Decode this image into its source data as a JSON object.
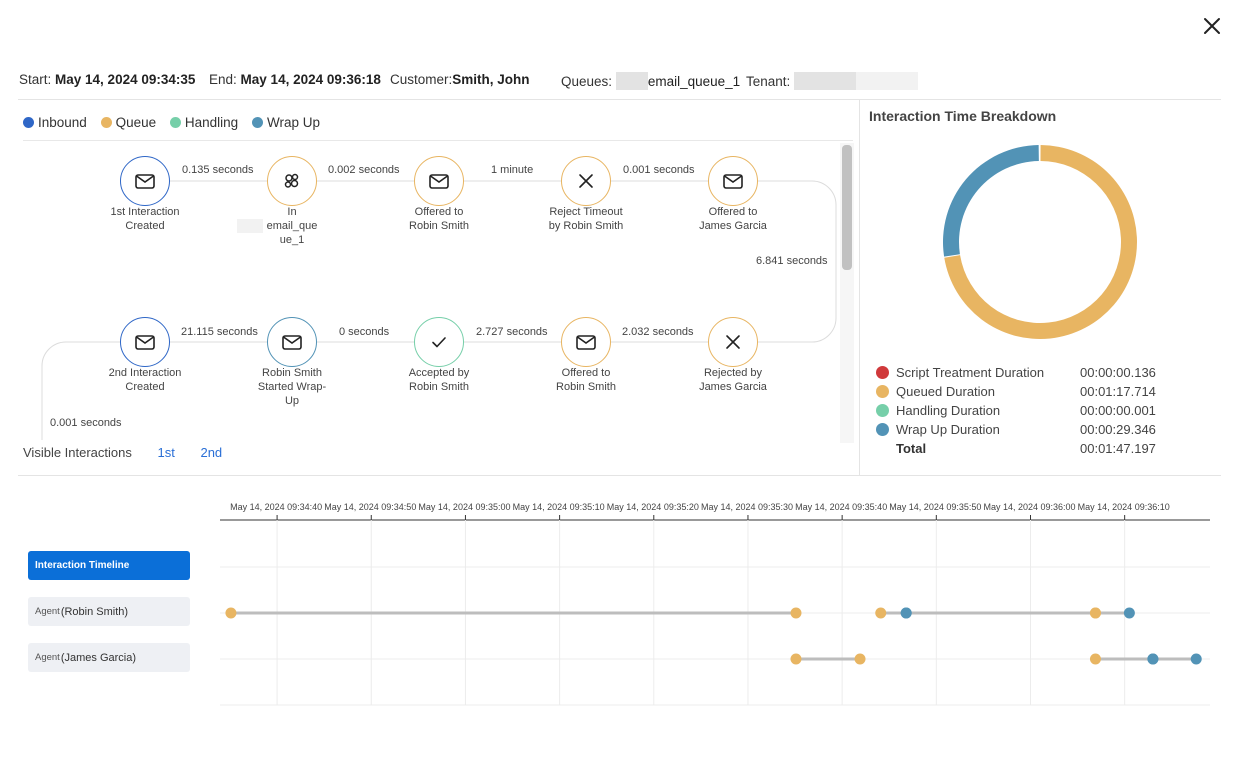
{
  "header": {
    "start_label": "Start:",
    "start_value": "May 14, 2024 09:34:35",
    "end_label": "End:",
    "end_value": "May 14, 2024 09:36:18",
    "customer_label": "Customer:",
    "customer_value": "Smith, John",
    "queues_label": "Queues:",
    "queues_value": "email_queue_1",
    "tenant_label": "Tenant:"
  },
  "legend": [
    {
      "label": "Inbound",
      "color": "#2f67c7"
    },
    {
      "label": "Queue",
      "color": "#e8b562"
    },
    {
      "label": "Handling",
      "color": "#76cfa9"
    },
    {
      "label": "Wrap Up",
      "color": "#5293b6"
    }
  ],
  "flow": {
    "nodes": [
      {
        "lines": [
          "1st Interaction",
          "Created"
        ],
        "icon": "mail-icon",
        "color": "#2f67c7"
      },
      {
        "lines": [
          "In",
          "email_que",
          "ue_1"
        ],
        "icon": "queue-icon",
        "color": "#e8b562"
      },
      {
        "lines": [
          "Offered to",
          "Robin Smith"
        ],
        "icon": "mail-icon",
        "color": "#e8b562"
      },
      {
        "lines": [
          "Reject Timeout",
          "by Robin Smith"
        ],
        "icon": "x-icon",
        "color": "#e8b562"
      },
      {
        "lines": [
          "Offered to",
          "James Garcia"
        ],
        "icon": "mail-icon",
        "color": "#e8b562"
      },
      {
        "lines": [
          "Rejected by",
          "James Garcia"
        ],
        "icon": "x-icon",
        "color": "#e8b562"
      },
      {
        "lines": [
          "Offered to",
          "Robin Smith"
        ],
        "icon": "mail-icon",
        "color": "#e8b562"
      },
      {
        "lines": [
          "Accepted by",
          "Robin Smith"
        ],
        "icon": "check-icon",
        "color": "#76cfa9"
      },
      {
        "lines": [
          "Robin Smith",
          "Started Wrap-",
          "Up"
        ],
        "icon": "mail-icon",
        "color": "#5293b6"
      },
      {
        "lines": [
          "2nd Interaction",
          "Created"
        ],
        "icon": "mail-icon",
        "color": "#2f67c7"
      }
    ],
    "edges": [
      "0.135 seconds",
      "0.002 seconds",
      "1 minute",
      "0.001 seconds",
      "6.841 seconds",
      "2.032 seconds",
      "2.727 seconds",
      "0 seconds",
      "21.115 seconds",
      "0.001 seconds"
    ]
  },
  "visible_interactions": {
    "label": "Visible Interactions",
    "items": [
      "1st",
      "2nd"
    ]
  },
  "breakdown": {
    "title": "Interaction Time Breakdown",
    "rows": [
      {
        "label": "Script Treatment Duration",
        "value": "00:00:00.136",
        "color": "#d0393b"
      },
      {
        "label": "Queued Duration",
        "value": "00:01:17.714",
        "color": "#e8b562"
      },
      {
        "label": "Handling Duration",
        "value": "00:00:00.001",
        "color": "#76cfa9"
      },
      {
        "label": "Wrap Up Duration",
        "value": "00:00:29.346",
        "color": "#5293b6"
      }
    ],
    "total_label": "Total",
    "total_value": "00:01:47.197",
    "donut_seconds": [
      0.136,
      77.714,
      0.001,
      29.346
    ]
  },
  "timeline": {
    "buttons": {
      "interaction": "Interaction Timeline",
      "agent_prefix": "Agent",
      "agent1": "(Robin Smith)",
      "agent2": "(James Garcia)"
    },
    "ticks": [
      "May 14, 2024 09:34:40",
      "May 14, 2024 09:34:50",
      "May 14, 2024 09:35:00",
      "May 14, 2024 09:35:10",
      "May 14, 2024 09:35:20",
      "May 14, 2024 09:35:30",
      "May 14, 2024 09:35:40",
      "May 14, 2024 09:35:50",
      "May 14, 2024 09:36:00",
      "May 14, 2024 09:36:10"
    ],
    "rows": [
      {
        "name": "Robin Smith",
        "segments": [
          {
            "start": "09:34:35.1",
            "end": "09:35:35.1",
            "start_color": "#e8b562",
            "end_color": "#e8b562"
          },
          {
            "start": "09:35:44.1",
            "end": "09:35:46.8",
            "start_color": "#e8b562",
            "end_color": "#5293b6"
          },
          {
            "start": "09:35:46.8",
            "end": "09:36:06.9",
            "start_color": "#5293b6",
            "end_color": "#e8b562"
          },
          {
            "start": "09:36:06.9",
            "end": "09:36:10.5",
            "start_color": "#e8b562",
            "end_color": "#5293b6"
          }
        ]
      },
      {
        "name": "James Garcia",
        "segments": [
          {
            "start": "09:35:35.1",
            "end": "09:35:41.9",
            "start_color": "#e8b562",
            "end_color": "#e8b562"
          },
          {
            "start": "09:36:06.9",
            "end": "09:36:13.0",
            "start_color": "#e8b562",
            "end_color": "#5293b6"
          },
          {
            "start": "09:36:13.0",
            "end": "09:36:17.6",
            "start_color": "#5293b6",
            "end_color": "#5293b6"
          }
        ]
      }
    ]
  }
}
